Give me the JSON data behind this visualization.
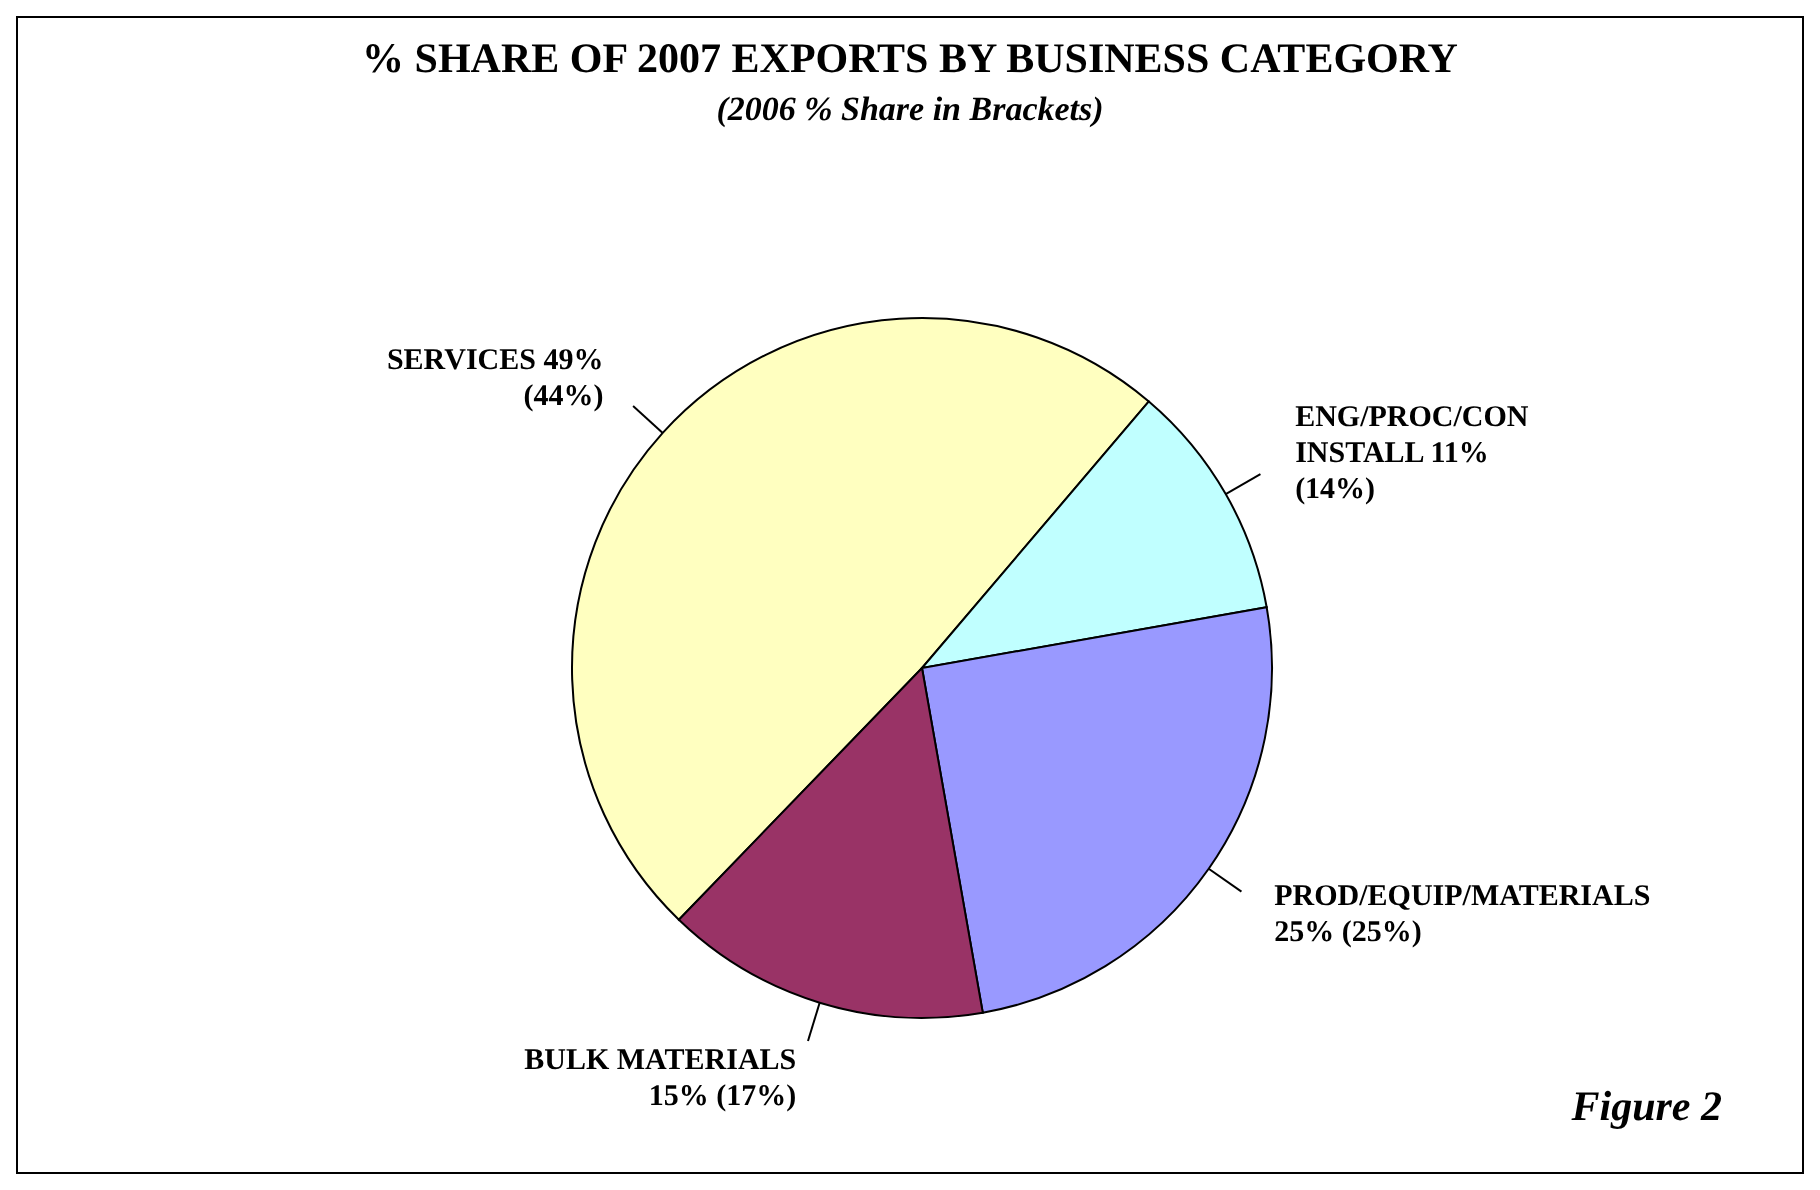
{
  "chart_data": {
    "type": "pie",
    "title": "% SHARE OF 2007 EXPORTS BY BUSINESS CATEGORY",
    "subtitle": "(2006 % Share in Brackets)",
    "categories": [
      "SERVICES",
      "ENG/PROC/CON INSTALL",
      "PROD/EQUIP/MATERIALS",
      "BULK MATERIALS"
    ],
    "values": [
      49,
      11,
      25,
      15
    ],
    "value_labels": [
      "49% (44%)",
      "11% (14%)",
      "25% (25%)",
      "15% (17%)"
    ],
    "colors": [
      "#ffffc0",
      "#c0ffff",
      "#9999ff",
      "#993366"
    ],
    "annotations": [
      "Figure 2"
    ]
  }
}
